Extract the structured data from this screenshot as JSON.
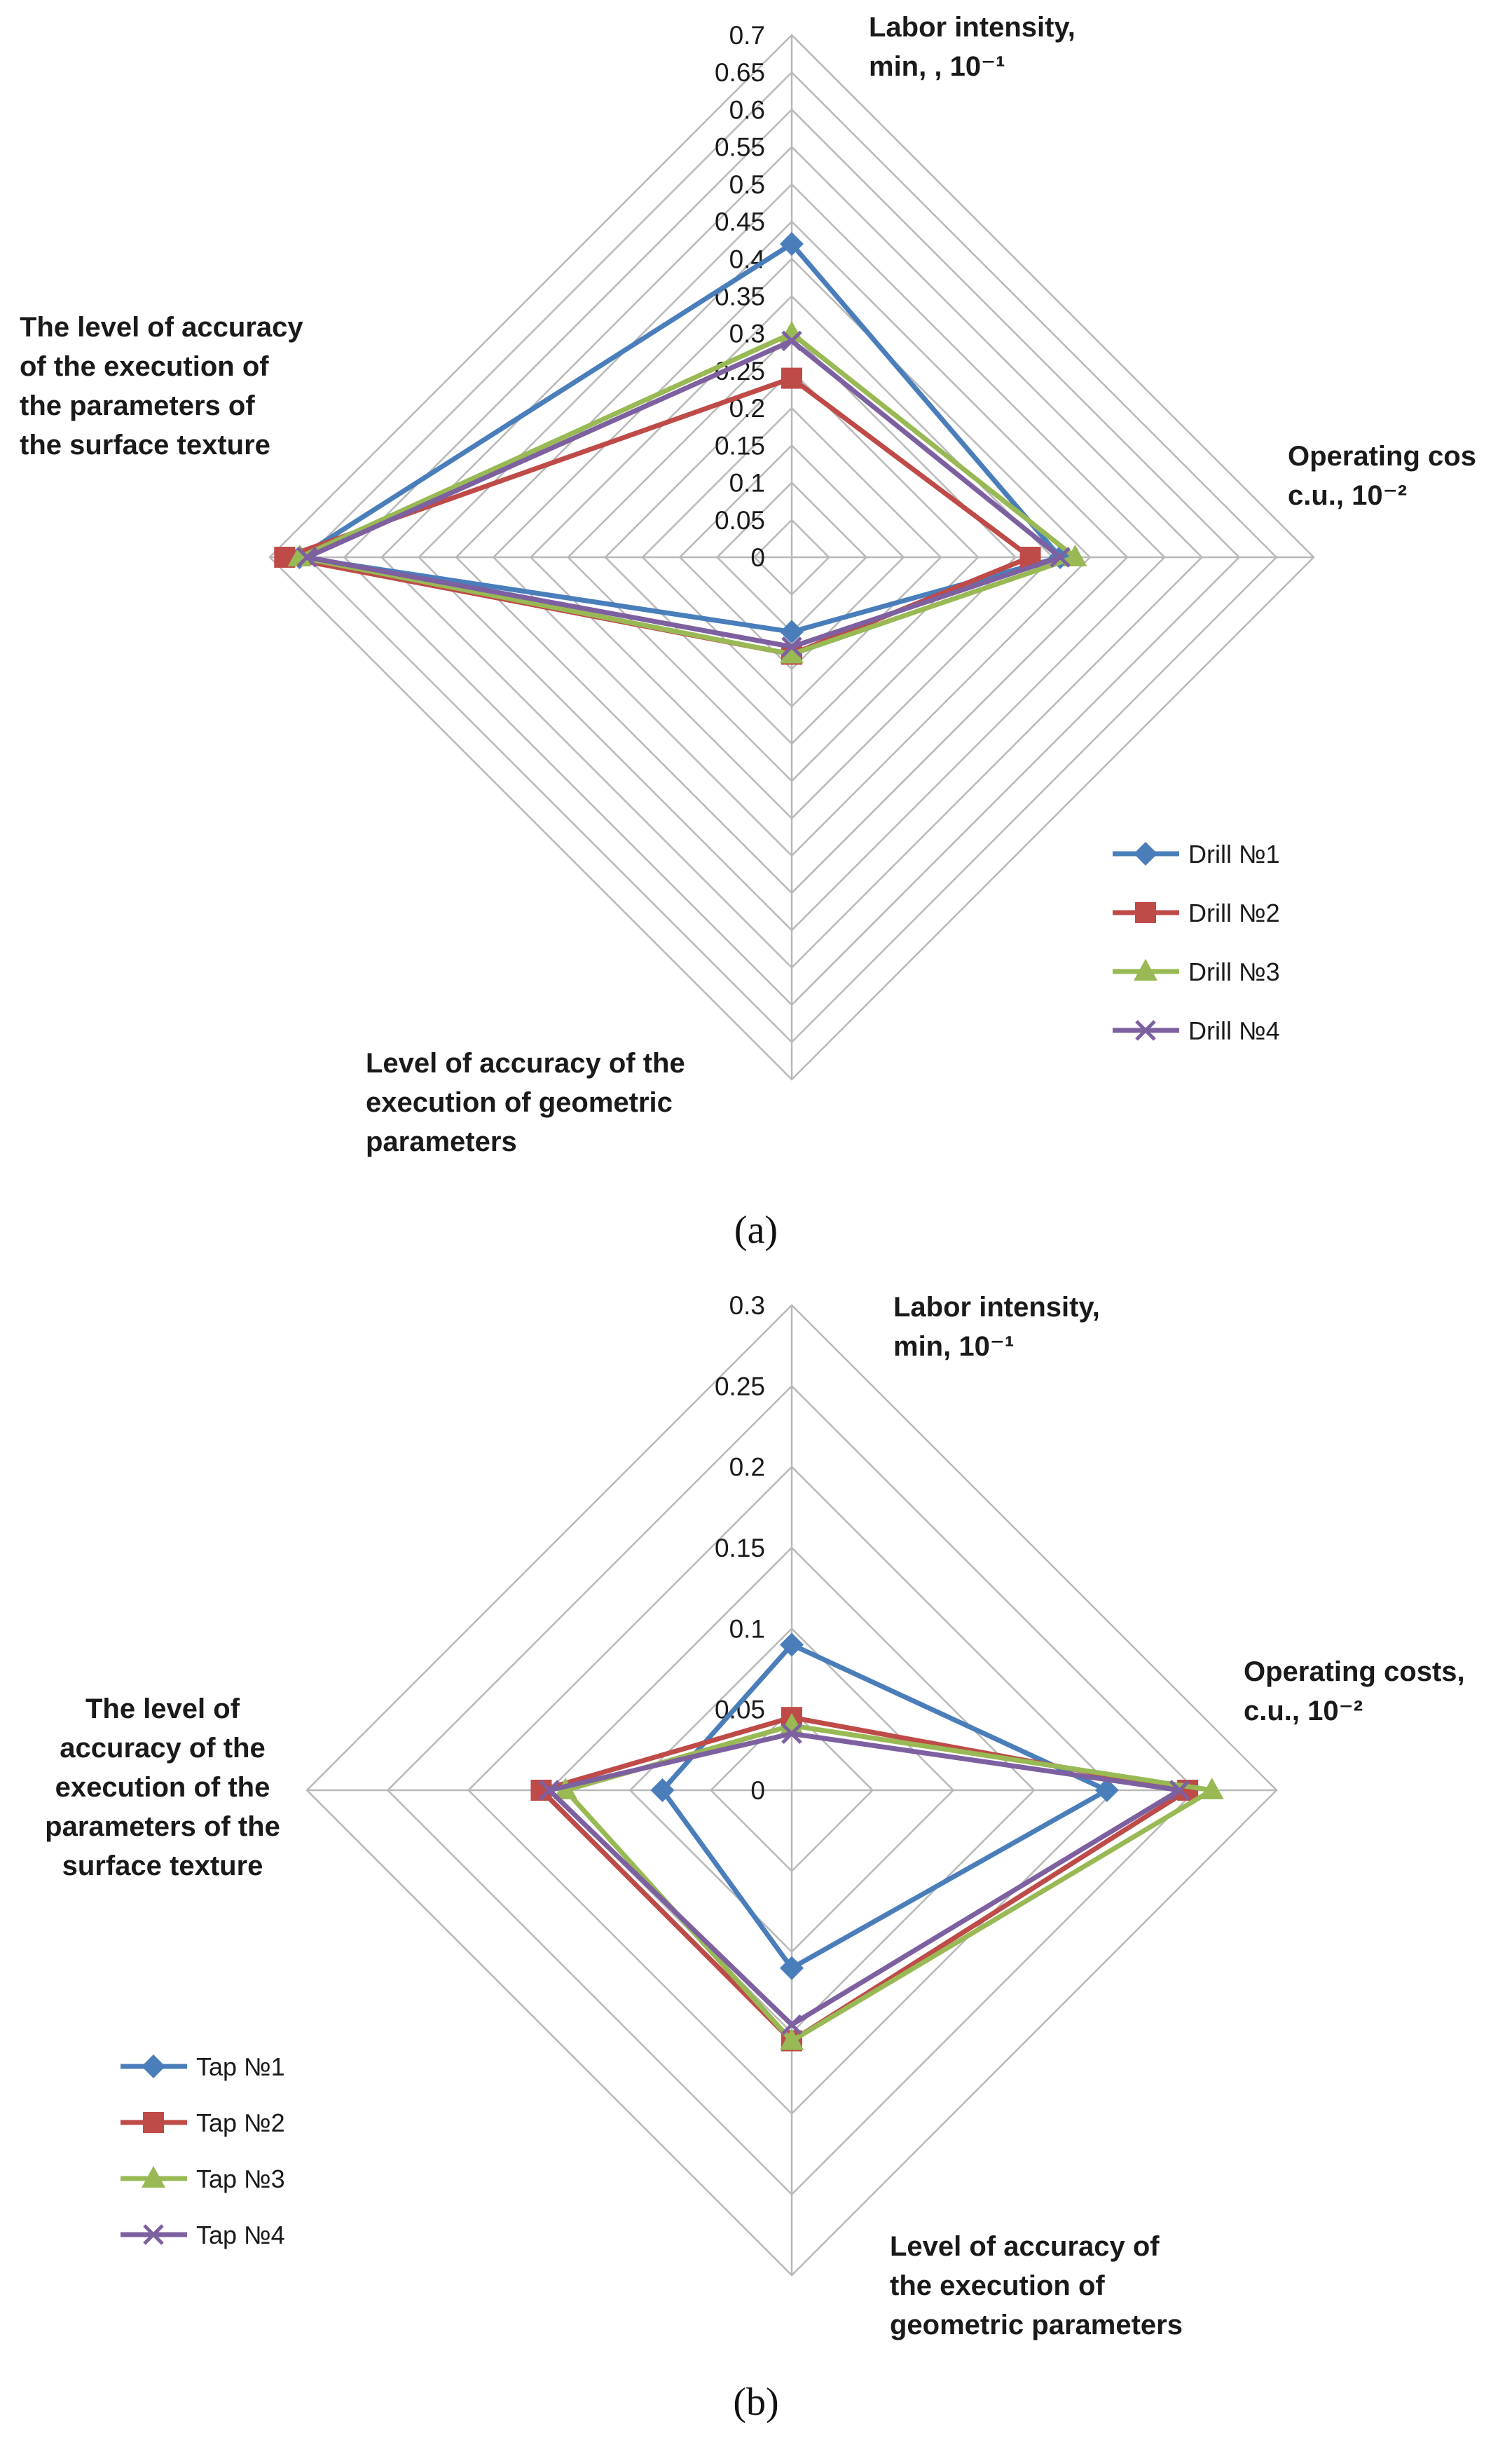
{
  "colors": {
    "series1": "#4A7EBB",
    "series2": "#BE4B48",
    "series3": "#98B954",
    "series4": "#7D60A0",
    "grid": "#b8b8b8"
  },
  "chart_data": [
    {
      "type": "radar",
      "caption": "(a)",
      "ticks": [
        "0",
        "0.05",
        "0.1",
        "0.15",
        "0.2",
        "0.25",
        "0.3",
        "0.35",
        "0.4",
        "0.45",
        "0.5",
        "0.55",
        "0.6",
        "0.65",
        "0.7"
      ],
      "rmax": 0.7,
      "axes": [
        {
          "lines": [
            "Labor intensity,",
            "min, , 10⁻¹"
          ]
        },
        {
          "lines": [
            "Operating cos",
            "c.u., 10⁻²"
          ]
        },
        {
          "lines": [
            "Level of accuracy of the",
            "execution of geometric",
            "parameters"
          ]
        },
        {
          "lines": [
            "The level of accuracy",
            "of the execution of",
            "the parameters of",
            "the surface texture"
          ]
        }
      ],
      "series": [
        {
          "name": "Drill №1",
          "values": [
            0.42,
            0.36,
            0.1,
            0.66
          ]
        },
        {
          "name": "Drill №2",
          "values": [
            0.24,
            0.32,
            0.13,
            0.68
          ]
        },
        {
          "name": "Drill №3",
          "values": [
            0.3,
            0.38,
            0.13,
            0.66
          ]
        },
        {
          "name": "Drill №4",
          "values": [
            0.29,
            0.36,
            0.12,
            0.65
          ]
        }
      ]
    },
    {
      "type": "radar",
      "caption": "(b)",
      "ticks": [
        "0",
        "0.05",
        "0.1",
        "0.15",
        "0.2",
        "0.25",
        "0.3"
      ],
      "rmax": 0.3,
      "axes": [
        {
          "lines": [
            "Labor intensity,",
            "min, 10⁻¹"
          ]
        },
        {
          "lines": [
            "Operating costs,",
            "c.u., 10⁻²"
          ]
        },
        {
          "lines": [
            "Level of accuracy of",
            "the execution of",
            "geometric parameters"
          ]
        },
        {
          "lines": [
            "The level of",
            "accuracy of the",
            "execution of the",
            "parameters of the",
            "surface texture"
          ]
        }
      ],
      "series": [
        {
          "name": "Tap №1",
          "values": [
            0.09,
            0.195,
            0.11,
            0.08
          ]
        },
        {
          "name": "Tap №2",
          "values": [
            0.045,
            0.245,
            0.155,
            0.155
          ]
        },
        {
          "name": "Tap №3",
          "values": [
            0.04,
            0.26,
            0.155,
            0.14
          ]
        },
        {
          "name": "Tap №4",
          "values": [
            0.035,
            0.24,
            0.145,
            0.15
          ]
        }
      ]
    }
  ]
}
